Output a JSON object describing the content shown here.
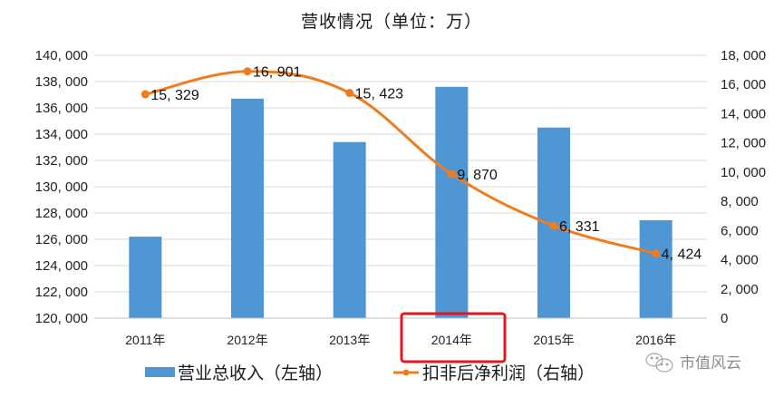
{
  "chart_data": {
    "type": "bar+line",
    "title": "营收情况（单位：万）",
    "categories": [
      "2011年",
      "2012年",
      "2013年",
      "2014年",
      "2015年",
      "2016年"
    ],
    "series": [
      {
        "name": "营业总收入（左轴）",
        "type": "bar",
        "axis": "left",
        "color": "#4f96d5",
        "values": [
          126200,
          136700,
          133400,
          137600,
          134500,
          127450
        ]
      },
      {
        "name": "扣非后净利润（右轴）",
        "type": "line",
        "axis": "right",
        "color": "#f07c1e",
        "values": [
          15329,
          16901,
          15423,
          9870,
          6331,
          4424
        ],
        "labels": [
          "15, 329",
          "16, 901",
          "15, 423",
          "9, 870",
          "6, 331",
          "4, 424"
        ]
      }
    ],
    "left_axis": {
      "ylim": [
        120000,
        140000
      ],
      "ticks": [
        "120, 000",
        "122, 000",
        "124, 000",
        "126, 000",
        "128, 000",
        "130, 000",
        "132, 000",
        "134, 000",
        "136, 000",
        "138, 000",
        "140, 000"
      ]
    },
    "right_axis": {
      "ylim": [
        0,
        18000
      ],
      "ticks": [
        "0",
        "2, 000",
        "4, 000",
        "6, 000",
        "8, 000",
        "10, 000",
        "12, 000",
        "14, 000",
        "16, 000",
        "18, 000"
      ]
    },
    "grid": true,
    "legend_position": "bottom",
    "annotations": [
      {
        "type": "highlight-box",
        "target": "2014年",
        "color": "#e8141c"
      }
    ]
  },
  "watermark": {
    "text": "市值风云"
  }
}
